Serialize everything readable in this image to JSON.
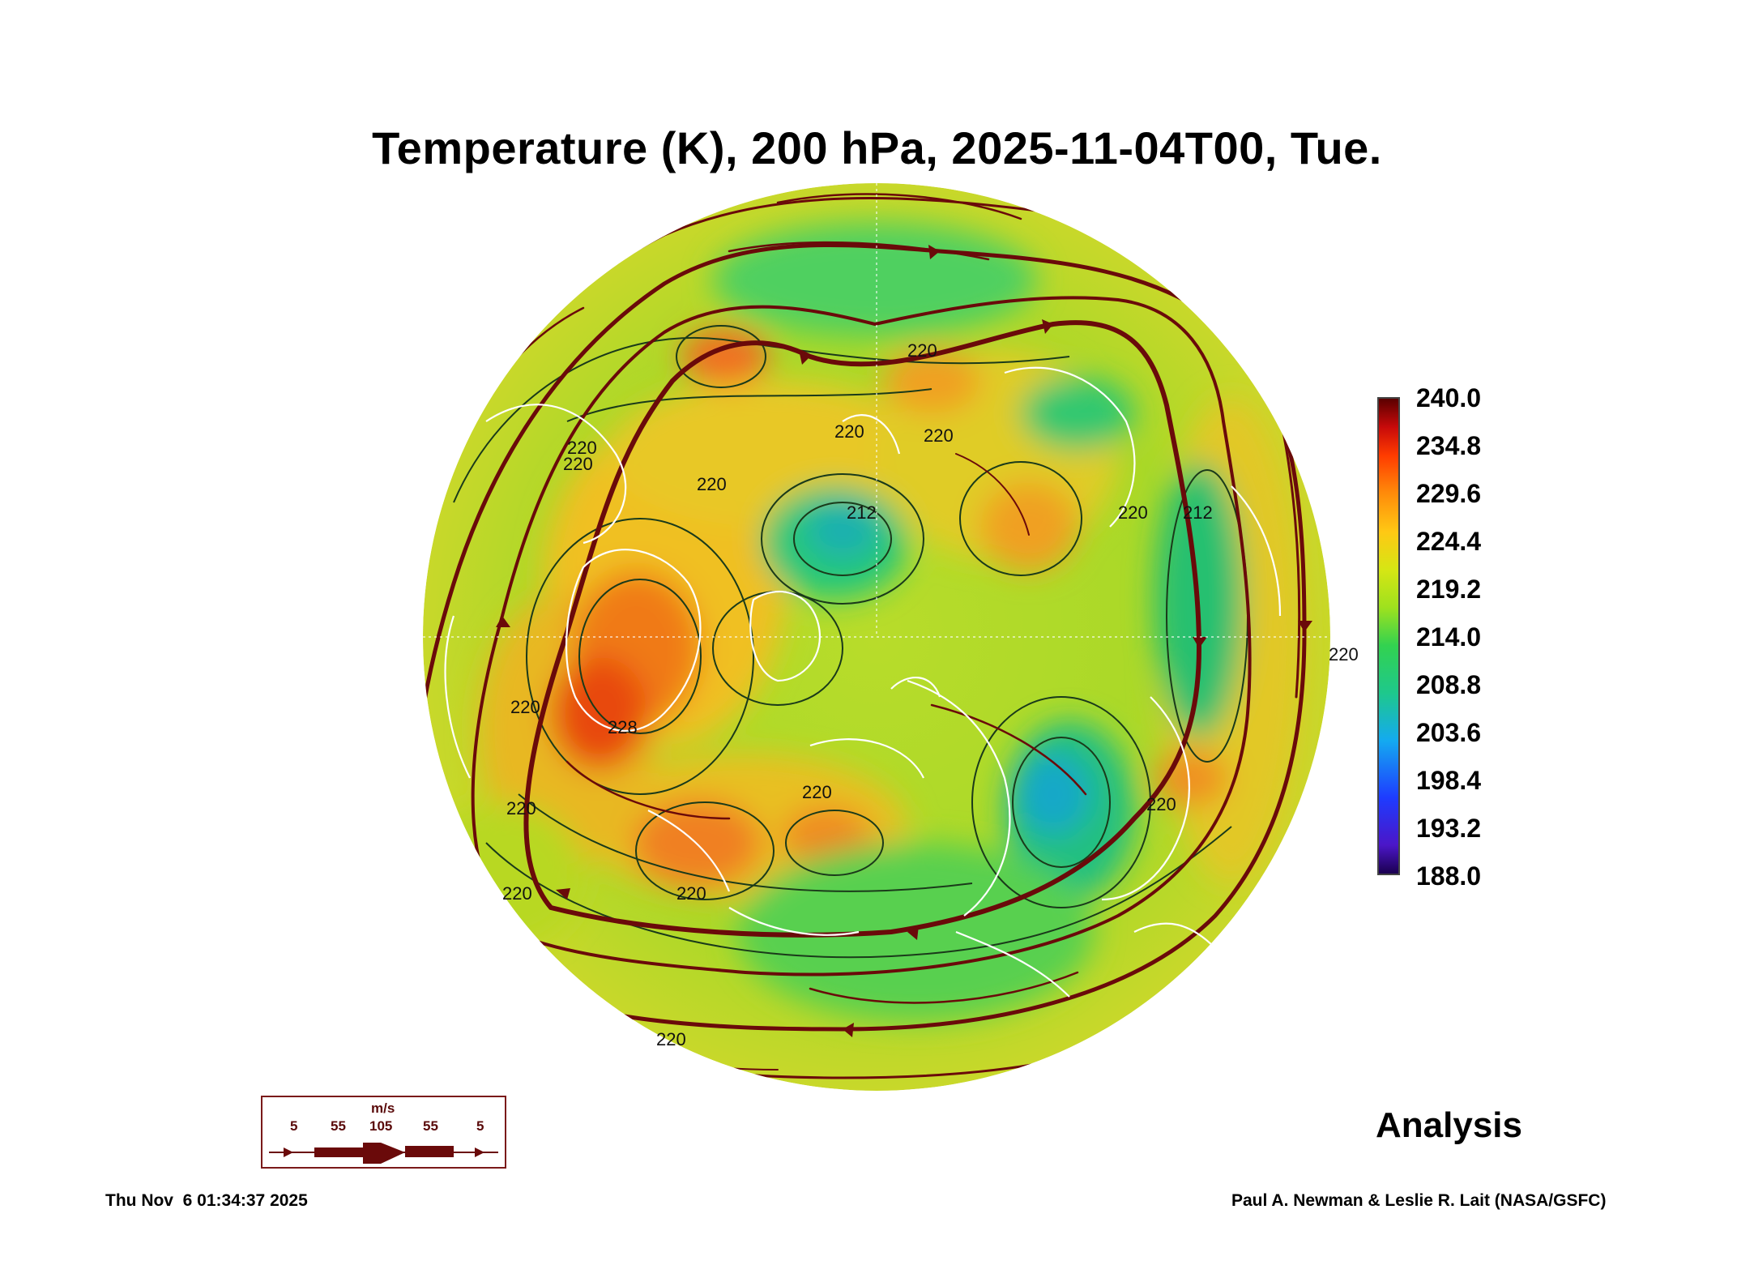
{
  "title": "Temperature (K), 200 hPa, 2025-11-04T00, Tue.",
  "colorbar": {
    "labels": [
      "240.0",
      "234.8",
      "229.6",
      "224.4",
      "219.2",
      "214.0",
      "208.8",
      "203.6",
      "198.4",
      "193.2",
      "188.0"
    ],
    "min": 188.0,
    "max": 240.0,
    "units": "K"
  },
  "contour_labels": [
    "220",
    "220",
    "220",
    "220",
    "212",
    "220",
    "228",
    "220",
    "220",
    "220",
    "212",
    "220",
    "220",
    "220",
    "220",
    "220",
    "220",
    "220"
  ],
  "wind_legend": {
    "units": "m/s",
    "speeds": [
      "5",
      "55",
      "105",
      "55",
      "5"
    ]
  },
  "analysis_label": "Analysis",
  "timestamp": "Thu Nov  6 01:34:37 2025",
  "credit": "Paul A. Newman & Leslie R. Lait (NASA/GSFC)",
  "colors": {
    "streamline": "#6a0a0a",
    "coastline": "#ffffff",
    "contour": "#1a3a1a",
    "background_field": "#a8dc28"
  }
}
